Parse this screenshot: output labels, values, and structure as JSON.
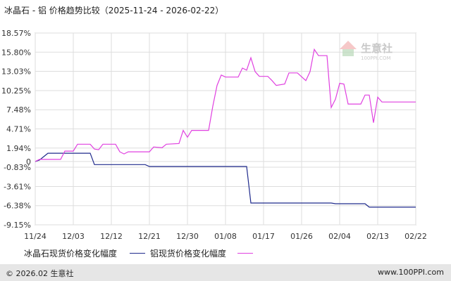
{
  "title": "冰晶石 - 铝 价格趋势比较（2025-11-24 - 2026-02-22）",
  "watermark": {
    "brand": "生意社",
    "url": "100PPI.COM"
  },
  "footer": {
    "copyright": "© 2026.02 生意社",
    "site": "www.100PPI.com"
  },
  "chart_data": {
    "type": "line",
    "title": "冰晶石 - 铝 价格趋势比较（2025-11-24 - 2026-02-22）",
    "xlabel": "",
    "ylabel": "",
    "ylim": [
      -9.15,
      18.57
    ],
    "y_ticks": [
      "18.57%",
      "15.80%",
      "13.03%",
      "10.25%",
      "7.48%",
      "4.71%",
      "1.94%",
      "0",
      "-0.83%",
      "-3.61%",
      "-6.38%",
      "-9.15%"
    ],
    "y_tick_values": [
      18.57,
      15.8,
      13.03,
      10.25,
      7.48,
      4.71,
      1.94,
      0,
      -0.83,
      -3.61,
      -6.38,
      -9.15
    ],
    "x_ticks": [
      "11/24",
      "12/03",
      "12/12",
      "12/21",
      "12/30",
      "01/08",
      "01/17",
      "01/26",
      "02/04",
      "02/13",
      "02/22"
    ],
    "x_range_days": [
      0,
      90
    ],
    "grid": true,
    "legend_position": "bottom",
    "series": [
      {
        "name": "冰晶石现货价格变化幅度",
        "color": "#1f2a8c",
        "points": [
          [
            0,
            0
          ],
          [
            1,
            0.2
          ],
          [
            2,
            0.7
          ],
          [
            3,
            1.2
          ],
          [
            13,
            1.2
          ],
          [
            14,
            -0.45
          ],
          [
            26,
            -0.45
          ],
          [
            27,
            -0.72
          ],
          [
            50,
            -0.72
          ],
          [
            51,
            -6.0
          ],
          [
            70,
            -6.0
          ],
          [
            71,
            -6.1
          ],
          [
            78,
            -6.1
          ],
          [
            79,
            -6.6
          ],
          [
            90,
            -6.6
          ]
        ]
      },
      {
        "name": "铝现货价格变化幅度",
        "color": "#e040e0",
        "points": [
          [
            0,
            0
          ],
          [
            1,
            0.3
          ],
          [
            6,
            0.3
          ],
          [
            7,
            1.5
          ],
          [
            9,
            1.5
          ],
          [
            10,
            2.5
          ],
          [
            13,
            2.5
          ],
          [
            14,
            1.8
          ],
          [
            15,
            1.7
          ],
          [
            16,
            2.5
          ],
          [
            19,
            2.5
          ],
          [
            20,
            1.4
          ],
          [
            21,
            1.1
          ],
          [
            22,
            1.4
          ],
          [
            27,
            1.4
          ],
          [
            28,
            2.1
          ],
          [
            30,
            2.0
          ],
          [
            31,
            2.5
          ],
          [
            34,
            2.6
          ],
          [
            35,
            4.5
          ],
          [
            36,
            3.5
          ],
          [
            37,
            4.5
          ],
          [
            41,
            4.5
          ],
          [
            42,
            8.0
          ],
          [
            43,
            11.0
          ],
          [
            44,
            12.5
          ],
          [
            45,
            12.2
          ],
          [
            48,
            12.2
          ],
          [
            49,
            13.5
          ],
          [
            50,
            13.2
          ],
          [
            51,
            15.0
          ],
          [
            52,
            13.0
          ],
          [
            53,
            12.3
          ],
          [
            55,
            12.3
          ],
          [
            56,
            11.7
          ],
          [
            57,
            11.0
          ],
          [
            59,
            11.2
          ],
          [
            60,
            12.8
          ],
          [
            62,
            12.8
          ],
          [
            64,
            11.7
          ],
          [
            65,
            13.0
          ],
          [
            66,
            16.2
          ],
          [
            67,
            15.3
          ],
          [
            69,
            15.3
          ],
          [
            70,
            7.8
          ],
          [
            71,
            9.0
          ],
          [
            72,
            11.3
          ],
          [
            73,
            11.2
          ],
          [
            74,
            8.3
          ],
          [
            77,
            8.3
          ],
          [
            78,
            9.6
          ],
          [
            79,
            9.6
          ],
          [
            80,
            5.6
          ],
          [
            81,
            9.3
          ],
          [
            82,
            8.6
          ],
          [
            90,
            8.6
          ]
        ]
      }
    ]
  }
}
